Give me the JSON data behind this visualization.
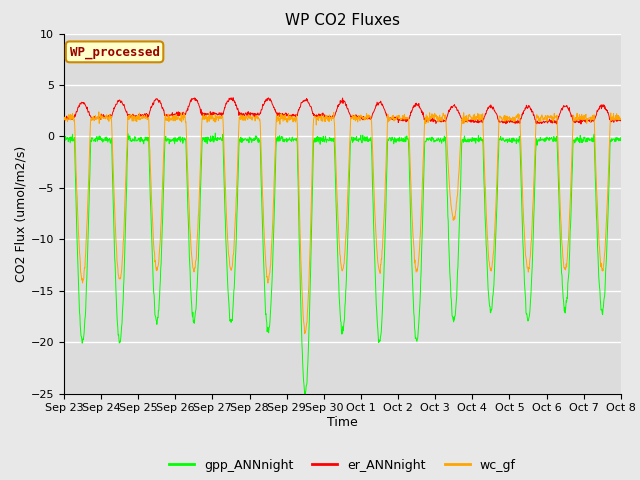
{
  "title": "WP CO2 Fluxes",
  "xlabel": "Time",
  "ylabel": "CO2 Flux (umol/m2/s)",
  "ylim": [
    -25,
    10
  ],
  "yticks": [
    -25,
    -20,
    -15,
    -10,
    -5,
    0,
    5,
    10
  ],
  "xtick_labels": [
    "Sep 23",
    "Sep 24",
    "Sep 25",
    "Sep 26",
    "Sep 27",
    "Sep 28",
    "Sep 29",
    "Sep 30",
    "Oct 1",
    "Oct 2",
    "Oct 3",
    "Oct 4",
    "Oct 5",
    "Oct 6",
    "Oct 7",
    "Oct 8"
  ],
  "legend_label": "WP_processed",
  "line_gpp_color": "#00FF00",
  "line_er_color": "#FF0000",
  "line_wc_color": "#FFA500",
  "fig_bg_color": "#E8E8E8",
  "plot_bg_color": "#DCDCDC",
  "legend_box_facecolor": "#FFFFCC",
  "legend_box_edgecolor": "#CC8800",
  "legend_text_color": "#990000",
  "title_fontsize": 11,
  "axis_fontsize": 9,
  "tick_fontsize": 8,
  "legend_fontsize": 8,
  "line_width": 0.7,
  "n_days": 15,
  "pts_per_day": 96,
  "grid_color": "#FFFFFF",
  "grid_lw": 1.0
}
